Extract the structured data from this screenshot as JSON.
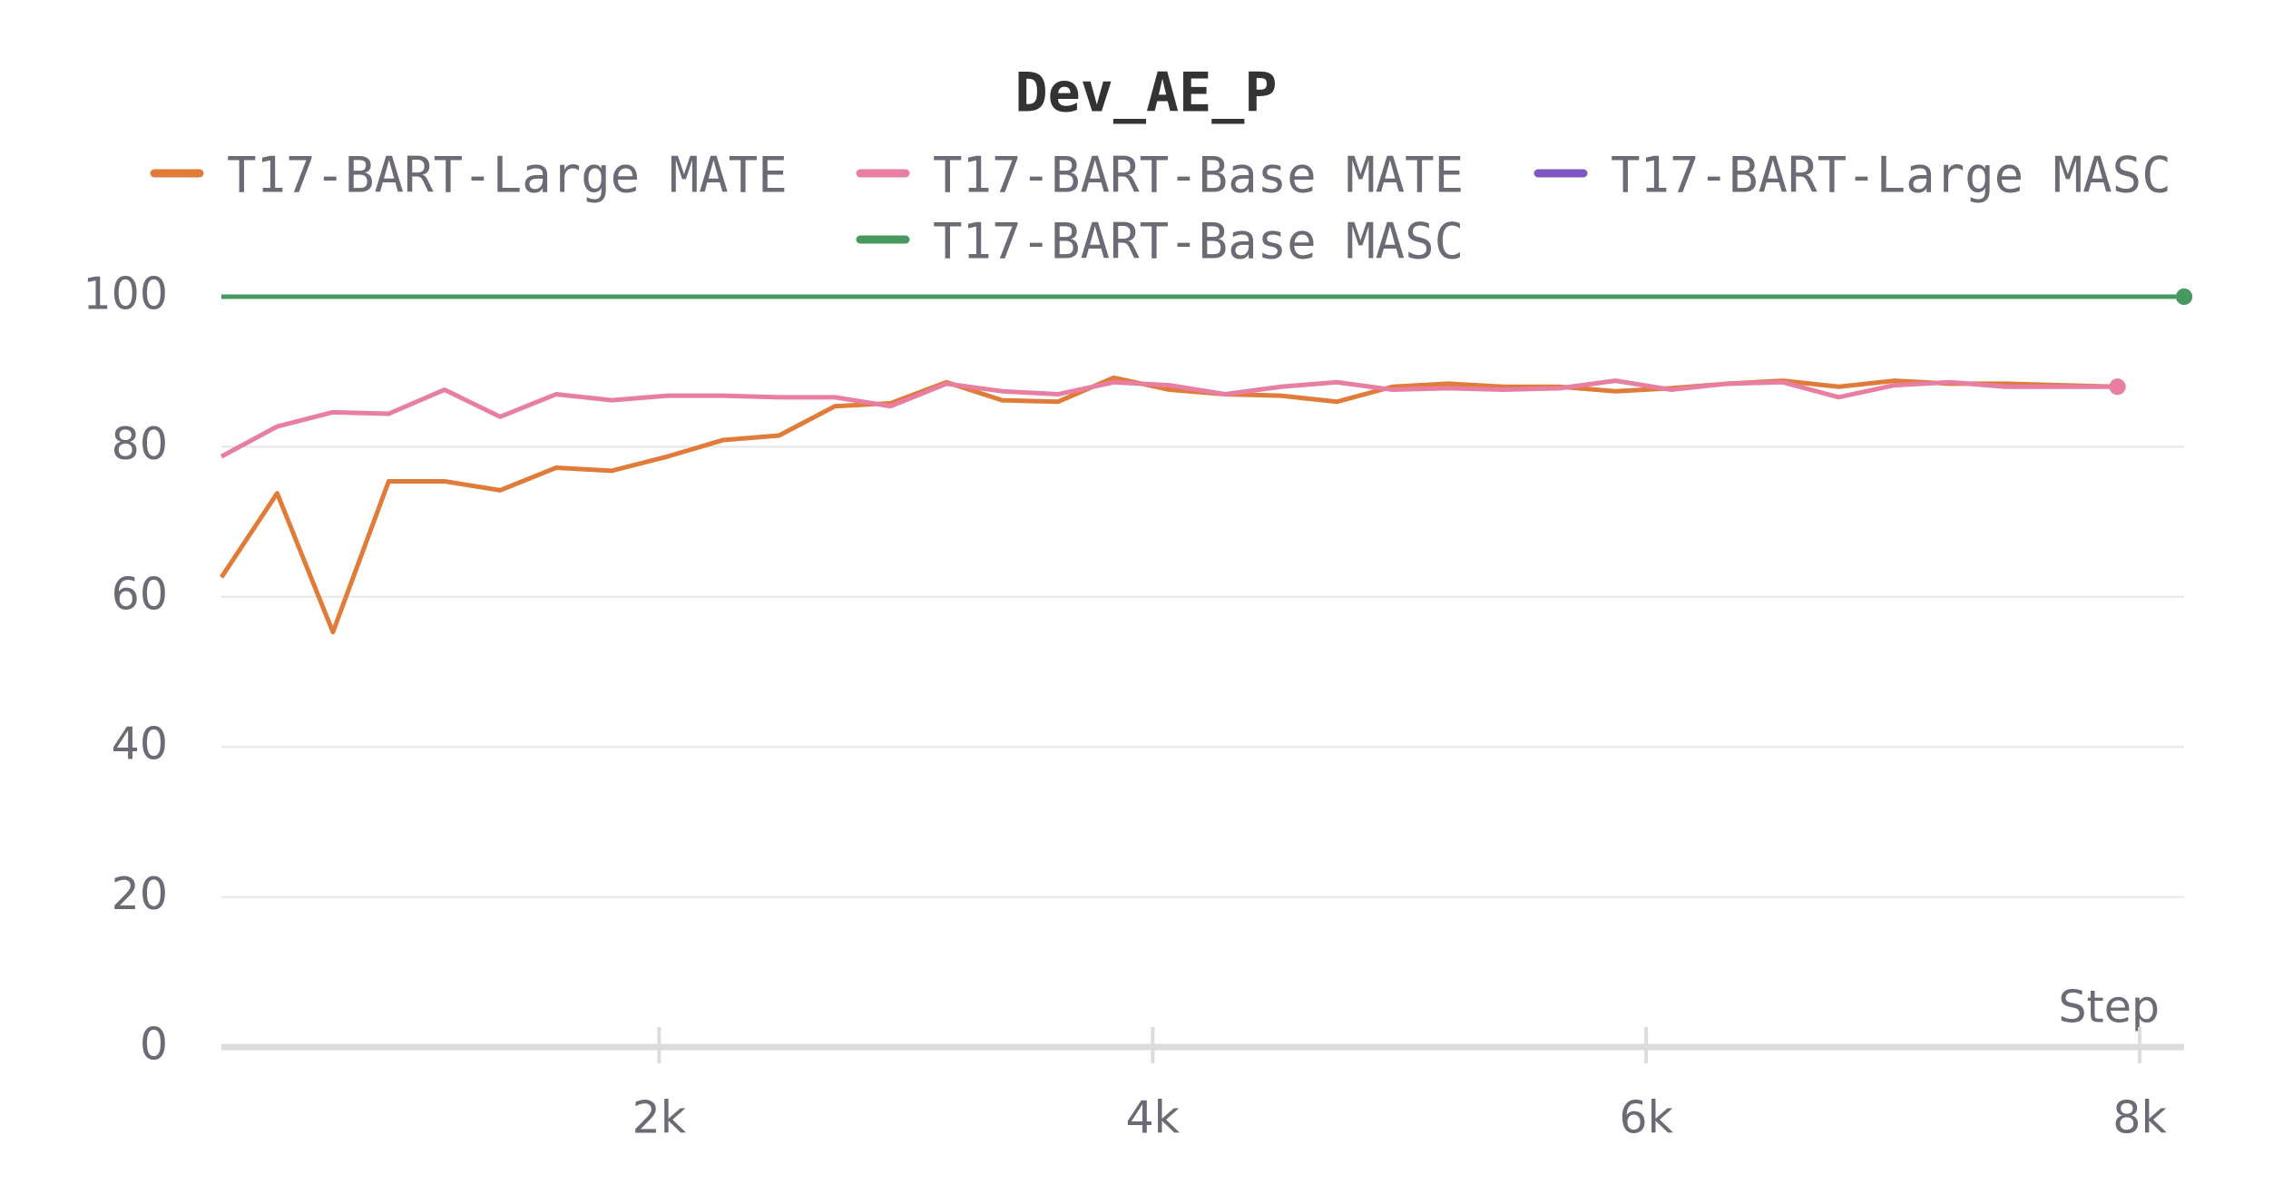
{
  "chart_data": {
    "type": "line",
    "title": "Dev_AE_P",
    "x_label": "Step",
    "xlim": [
      226,
      8180
    ],
    "xticks": [
      {
        "value": 2000,
        "label": "2k"
      },
      {
        "value": 4000,
        "label": "4k"
      },
      {
        "value": 6000,
        "label": "6k"
      },
      {
        "value": 8000,
        "label": "8k"
      }
    ],
    "ylim": [
      0,
      100
    ],
    "yticks": [
      0,
      20,
      40,
      60,
      80,
      100
    ],
    "grid": true,
    "series": [
      {
        "name": "T17-BART-Large MATE",
        "color": "#e07b39",
        "x": [
          226,
          452,
          678,
          904,
          1130,
          1356,
          1582,
          1808,
          2034,
          2260,
          2486,
          2712,
          2938,
          3164,
          3390,
          3616,
          3842,
          4068,
          4294,
          4520,
          4746,
          4972,
          5198,
          5424,
          5650,
          5876,
          6102,
          6328,
          6554,
          6780,
          7006,
          7232,
          7458,
          7684,
          7910
        ],
        "values": [
          62.6,
          73.8,
          55.3,
          75.4,
          75.4,
          74.2,
          77.2,
          76.8,
          78.7,
          80.9,
          81.5,
          85.4,
          85.8,
          88.6,
          86.2,
          86.0,
          89.2,
          87.6,
          87.0,
          86.8,
          86.0,
          88.0,
          88.4,
          88.0,
          88.0,
          87.4,
          87.8,
          88.4,
          88.8,
          88.0,
          88.8,
          88.4,
          88.4,
          88.2,
          88.0
        ]
      },
      {
        "name": "T17-BART-Base MATE",
        "color": "#e87ea1",
        "x": [
          226,
          452,
          678,
          904,
          1130,
          1356,
          1582,
          1808,
          2034,
          2260,
          2486,
          2712,
          2938,
          3164,
          3390,
          3616,
          3842,
          4068,
          4294,
          4520,
          4746,
          4972,
          5198,
          5424,
          5650,
          5876,
          6102,
          6328,
          6554,
          6780,
          7006,
          7232,
          7458,
          7684,
          7910
        ],
        "values": [
          78.7,
          82.7,
          84.6,
          84.4,
          87.6,
          84.0,
          87.0,
          86.2,
          86.8,
          86.8,
          86.6,
          86.6,
          85.4,
          88.4,
          87.4,
          87.0,
          88.6,
          88.2,
          87.0,
          88.0,
          88.6,
          87.6,
          87.8,
          87.6,
          87.8,
          88.8,
          87.6,
          88.4,
          88.6,
          86.6,
          88.2,
          88.6,
          88.0,
          88.0,
          88.0
        ]
      },
      {
        "name": "T17-BART-Large MASC",
        "color": "#7e57c2",
        "x": [
          226,
          8180
        ],
        "values": [
          100,
          100
        ]
      },
      {
        "name": "T17-BART-Base MASC",
        "color": "#479a5f",
        "x": [
          226,
          8180
        ],
        "values": [
          100,
          100
        ]
      }
    ]
  }
}
